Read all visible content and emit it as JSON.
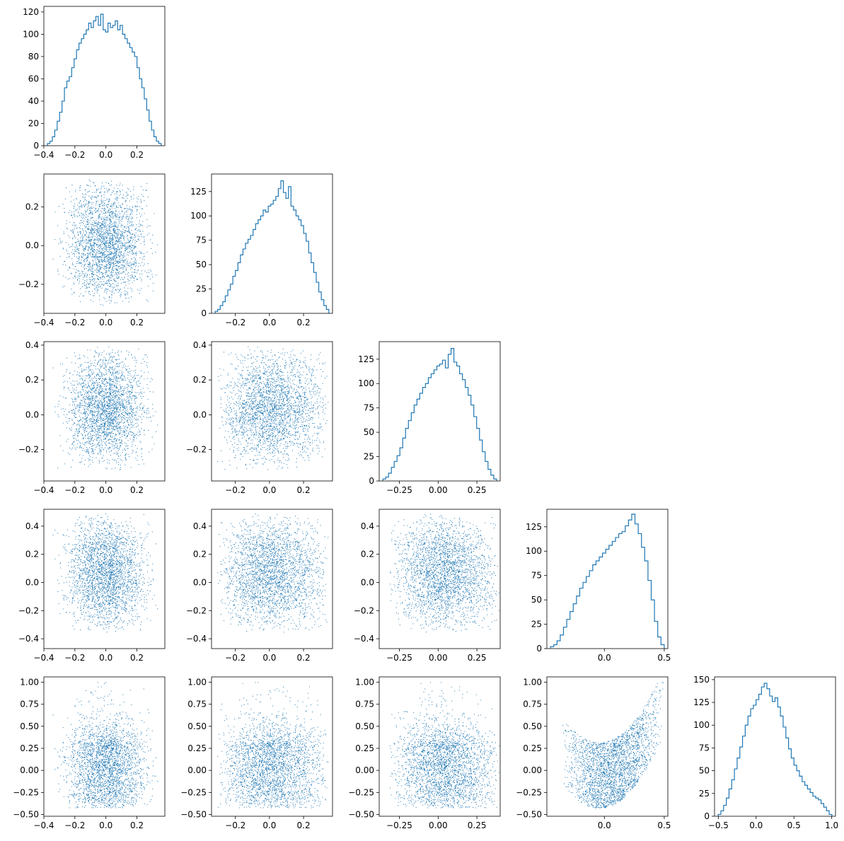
{
  "figure": {
    "type": "corner-plot",
    "color": "#1f77b4"
  },
  "chart_data": {
    "type": "corner",
    "variables": [
      {
        "range": [
          -0.4,
          0.4
        ],
        "center": 0.0,
        "halfwidth": 0.36,
        "shape": "flat"
      },
      {
        "range": [
          -0.34,
          0.36
        ],
        "center": 0.02,
        "halfwidth": 0.34,
        "shape": "dome"
      },
      {
        "range": [
          -0.37,
          0.4
        ],
        "center": 0.02,
        "halfwidth": 0.37,
        "shape": "dome"
      },
      {
        "range": [
          -0.46,
          0.52
        ],
        "center": 0.05,
        "halfwidth": 0.48,
        "shape": "skew"
      },
      {
        "range": [
          -0.52,
          1.06
        ],
        "center": 0.2,
        "halfwidth": 0.8,
        "shape": "right-skew"
      }
    ],
    "panels": [
      {
        "row": 0,
        "col": 0,
        "type": "hist",
        "xlim": [
          -0.4,
          0.38
        ],
        "ylim": [
          0,
          125
        ],
        "xticks": [
          "−0.4",
          "−0.2",
          "0.0",
          "0.2"
        ],
        "xtick_vals": [
          -0.4,
          -0.2,
          0.0,
          0.2
        ],
        "yticks": [
          "0",
          "20",
          "40",
          "60",
          "80",
          "100",
          "120"
        ],
        "ytick_vals": [
          0,
          20,
          40,
          60,
          80,
          100,
          120
        ],
        "counts": [
          2,
          4,
          8,
          14,
          22,
          30,
          40,
          52,
          58,
          62,
          70,
          78,
          86,
          92,
          96,
          100,
          104,
          110,
          106,
          112,
          116,
          108,
          118,
          104,
          102,
          110,
          106,
          108,
          112,
          104,
          108,
          100,
          96,
          92,
          88,
          84,
          80,
          70,
          60,
          52,
          42,
          32,
          22,
          14,
          8,
          4,
          2
        ]
      },
      {
        "row": 1,
        "col": 0,
        "type": "scatter",
        "xlim": [
          -0.4,
          0.38
        ],
        "ylim": [
          -0.35,
          0.37
        ],
        "xticks": [
          "−0.4",
          "−0.2",
          "0.0",
          "0.2"
        ],
        "xtick_vals": [
          -0.4,
          -0.2,
          0.0,
          0.2
        ],
        "yticks": [
          "−0.2",
          "0.0",
          "0.2"
        ],
        "ytick_vals": [
          -0.2,
          0.0,
          0.2
        ],
        "xi": 0,
        "yi": 1
      },
      {
        "row": 1,
        "col": 1,
        "type": "hist",
        "xlim": [
          -0.34,
          0.37
        ],
        "ylim": [
          0,
          143
        ],
        "xticks": [
          "−0.2",
          "0.0",
          "0.2"
        ],
        "xtick_vals": [
          -0.2,
          0.0,
          0.2
        ],
        "yticks": [
          "0",
          "25",
          "50",
          "75",
          "100",
          "125"
        ],
        "ytick_vals": [
          0,
          25,
          50,
          75,
          100,
          125
        ],
        "counts": [
          2,
          4,
          8,
          12,
          18,
          24,
          30,
          38,
          44,
          52,
          60,
          66,
          72,
          76,
          80,
          86,
          92,
          96,
          100,
          106,
          104,
          110,
          112,
          116,
          120,
          128,
          136,
          124,
          118,
          130,
          110,
          106,
          100,
          96,
          90,
          82,
          74,
          62,
          52,
          42,
          32,
          22,
          14,
          8,
          4
        ]
      },
      {
        "row": 2,
        "col": 0,
        "type": "scatter",
        "xlim": [
          -0.4,
          0.38
        ],
        "ylim": [
          -0.38,
          0.42
        ],
        "xticks": [
          "−0.4",
          "−0.2",
          "0.0",
          "0.2"
        ],
        "xtick_vals": [
          -0.4,
          -0.2,
          0.0,
          0.2
        ],
        "yticks": [
          "−0.2",
          "0.0",
          "0.2",
          "0.4"
        ],
        "ytick_vals": [
          -0.2,
          0.0,
          0.2,
          0.4
        ],
        "xi": 0,
        "yi": 2
      },
      {
        "row": 2,
        "col": 1,
        "type": "scatter",
        "xlim": [
          -0.34,
          0.37
        ],
        "ylim": [
          -0.38,
          0.42
        ],
        "xticks": [
          "−0.2",
          "0.0",
          "0.2"
        ],
        "xtick_vals": [
          -0.2,
          0.0,
          0.2
        ],
        "yticks": [
          "−0.2",
          "0.0",
          "0.2",
          "0.4"
        ],
        "ytick_vals": [
          -0.2,
          0.0,
          0.2,
          0.4
        ],
        "xi": 1,
        "yi": 2
      },
      {
        "row": 2,
        "col": 2,
        "type": "hist",
        "xlim": [
          -0.38,
          0.4
        ],
        "ylim": [
          0,
          143
        ],
        "xticks": [
          "−0.25",
          "0.00",
          "0.25"
        ],
        "xtick_vals": [
          -0.25,
          0.0,
          0.25
        ],
        "yticks": [
          "0",
          "25",
          "50",
          "75",
          "100",
          "125"
        ],
        "ytick_vals": [
          0,
          25,
          50,
          75,
          100,
          125
        ],
        "counts": [
          2,
          4,
          8,
          14,
          20,
          26,
          34,
          44,
          54,
          62,
          70,
          78,
          84,
          90,
          96,
          100,
          106,
          110,
          114,
          118,
          120,
          124,
          116,
          130,
          136,
          122,
          118,
          110,
          104,
          96,
          88,
          78,
          66,
          54,
          42,
          30,
          20,
          12,
          6,
          2
        ]
      },
      {
        "row": 3,
        "col": 0,
        "type": "scatter",
        "xlim": [
          -0.4,
          0.38
        ],
        "ylim": [
          -0.47,
          0.52
        ],
        "xticks": [
          "−0.4",
          "−0.2",
          "0.0",
          "0.2"
        ],
        "xtick_vals": [
          -0.4,
          -0.2,
          0.0,
          0.2
        ],
        "yticks": [
          "−0.4",
          "−0.2",
          "0.0",
          "0.2",
          "0.4"
        ],
        "ytick_vals": [
          -0.4,
          -0.2,
          0.0,
          0.2,
          0.4
        ],
        "xi": 0,
        "yi": 3
      },
      {
        "row": 3,
        "col": 1,
        "type": "scatter",
        "xlim": [
          -0.34,
          0.37
        ],
        "ylim": [
          -0.47,
          0.52
        ],
        "xticks": [
          "−0.2",
          "0.0",
          "0.2"
        ],
        "xtick_vals": [
          -0.2,
          0.0,
          0.2
        ],
        "yticks": [
          "−0.4",
          "−0.2",
          "0.0",
          "0.2",
          "0.4"
        ],
        "ytick_vals": [
          -0.4,
          -0.2,
          0.0,
          0.2,
          0.4
        ],
        "xi": 1,
        "yi": 3
      },
      {
        "row": 3,
        "col": 2,
        "type": "scatter",
        "xlim": [
          -0.38,
          0.4
        ],
        "ylim": [
          -0.47,
          0.52
        ],
        "xticks": [
          "−0.25",
          "0.00",
          "0.25"
        ],
        "xtick_vals": [
          -0.25,
          0.0,
          0.25
        ],
        "yticks": [
          "−0.4",
          "−0.2",
          "0.0",
          "0.2",
          "0.4"
        ],
        "ytick_vals": [
          -0.4,
          -0.2,
          0.0,
          0.2,
          0.4
        ],
        "xi": 2,
        "yi": 3
      },
      {
        "row": 3,
        "col": 3,
        "type": "hist",
        "xlim": [
          -0.48,
          0.53
        ],
        "ylim": [
          0,
          143
        ],
        "xticks": [
          "0.0",
          "0.5"
        ],
        "xtick_vals": [
          0.0,
          0.5
        ],
        "yticks": [
          "0",
          "25",
          "50",
          "75",
          "100",
          "125"
        ],
        "ytick_vals": [
          0,
          25,
          50,
          75,
          100,
          125
        ],
        "counts": [
          2,
          4,
          8,
          14,
          22,
          30,
          38,
          46,
          54,
          62,
          68,
          74,
          80,
          86,
          90,
          94,
          98,
          102,
          106,
          110,
          114,
          118,
          120,
          126,
          132,
          138,
          128,
          118,
          104,
          90,
          70,
          50,
          28,
          12,
          4
        ]
      },
      {
        "row": 4,
        "col": 0,
        "type": "scatter",
        "xlim": [
          -0.4,
          0.38
        ],
        "ylim": [
          -0.52,
          1.06
        ],
        "xticks": [
          "−0.4",
          "−0.2",
          "0.0",
          "0.2"
        ],
        "xtick_vals": [
          -0.4,
          -0.2,
          0.0,
          0.2
        ],
        "yticks": [
          "−0.50",
          "−0.25",
          "0.00",
          "0.25",
          "0.50",
          "0.75",
          "1.00"
        ],
        "ytick_vals": [
          -0.5,
          -0.25,
          0.0,
          0.25,
          0.5,
          0.75,
          1.0
        ],
        "xi": 0,
        "yi": 4
      },
      {
        "row": 4,
        "col": 1,
        "type": "scatter",
        "xlim": [
          -0.34,
          0.37
        ],
        "ylim": [
          -0.52,
          1.06
        ],
        "xticks": [
          "−0.2",
          "0.0",
          "0.2"
        ],
        "xtick_vals": [
          -0.2,
          0.0,
          0.2
        ],
        "yticks": [
          "−0.50",
          "−0.25",
          "0.00",
          "0.25",
          "0.50",
          "0.75",
          "1.00"
        ],
        "ytick_vals": [
          -0.5,
          -0.25,
          0.0,
          0.25,
          0.5,
          0.75,
          1.0
        ],
        "xi": 1,
        "yi": 4
      },
      {
        "row": 4,
        "col": 2,
        "type": "scatter",
        "xlim": [
          -0.38,
          0.4
        ],
        "ylim": [
          -0.52,
          1.06
        ],
        "xticks": [
          "−0.25",
          "0.00",
          "0.25"
        ],
        "xtick_vals": [
          -0.25,
          0.0,
          0.25
        ],
        "yticks": [
          "−0.50",
          "−0.25",
          "0.00",
          "0.25",
          "0.50",
          "0.75",
          "1.00"
        ],
        "ytick_vals": [
          -0.5,
          -0.25,
          0.0,
          0.25,
          0.5,
          0.75,
          1.0
        ],
        "xi": 2,
        "yi": 4
      },
      {
        "row": 4,
        "col": 3,
        "type": "scatter",
        "xlim": [
          -0.48,
          0.53
        ],
        "ylim": [
          -0.52,
          1.06
        ],
        "xticks": [
          "0.0",
          "0.5"
        ],
        "xtick_vals": [
          0.0,
          0.5
        ],
        "yticks": [
          "−0.50",
          "−0.25",
          "0.00",
          "0.25",
          "0.50",
          "0.75",
          "1.00"
        ],
        "ytick_vals": [
          -0.5,
          -0.25,
          0.0,
          0.25,
          0.5,
          0.75,
          1.0
        ],
        "xi": 3,
        "yi": 4,
        "parabola": true
      },
      {
        "row": 4,
        "col": 4,
        "type": "hist",
        "xlim": [
          -0.55,
          1.05
        ],
        "ylim": [
          0,
          153
        ],
        "xticks": [
          "−0.5",
          "0.0",
          "0.5",
          "1.0"
        ],
        "xtick_vals": [
          -0.5,
          0.0,
          0.5,
          1.0
        ],
        "yticks": [
          "0",
          "25",
          "50",
          "75",
          "100",
          "125",
          "150"
        ],
        "ytick_vals": [
          0,
          25,
          50,
          75,
          100,
          125,
          150
        ],
        "counts": [
          2,
          6,
          12,
          20,
          30,
          40,
          52,
          64,
          76,
          88,
          100,
          110,
          118,
          122,
          128,
          134,
          142,
          146,
          140,
          132,
          126,
          130,
          120,
          110,
          98,
          86,
          74,
          64,
          56,
          50,
          44,
          38,
          34,
          30,
          26,
          22,
          20,
          18,
          14,
          10,
          6,
          2
        ]
      }
    ]
  }
}
